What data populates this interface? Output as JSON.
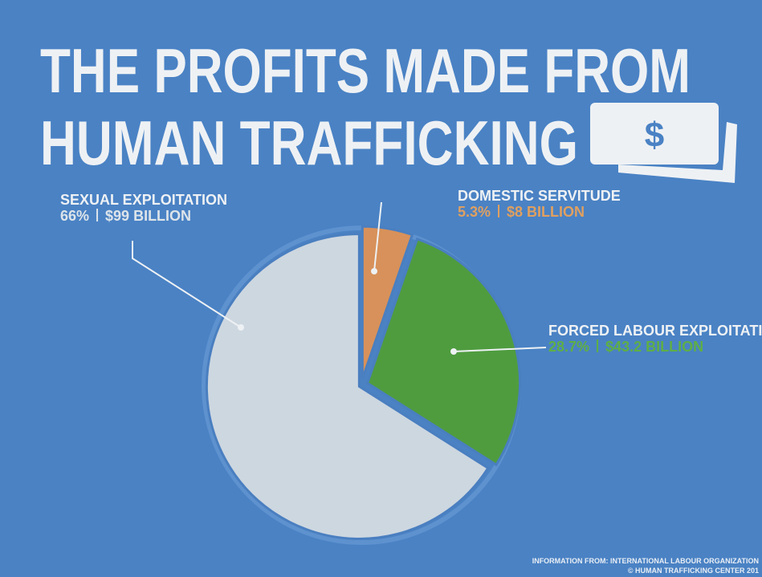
{
  "chart_data": {
    "type": "pie",
    "title_lines": [
      "THE PROFITS MADE FROM",
      "HUMAN TRAFFICKING"
    ],
    "badge": "$",
    "categories": [
      "DOMESTIC SERVITUDE",
      "FORCED LABOUR EXPLOITATION",
      "SEXUAL EXPLOITATION"
    ],
    "values": [
      5.3,
      28.7,
      66
    ],
    "value_labels": [
      "5.3%",
      "28.7%",
      "66%"
    ],
    "amounts": [
      8,
      43.2,
      99
    ],
    "amount_labels": [
      "$8 BILLION",
      "$43.2 BILLION",
      "$99 BILLION"
    ],
    "colors": [
      "#d8915a",
      "#4f9c3f",
      "#cdd7e0"
    ],
    "label_colors": [
      "#e0a060",
      "#5fae45",
      "#dde4ea"
    ],
    "footnotes": [
      "INFORMATION FROM: INTERNATIONAL LABOUR ORGANIZATION",
      "© HUMAN TRAFFICKING CENTER 201"
    ]
  }
}
